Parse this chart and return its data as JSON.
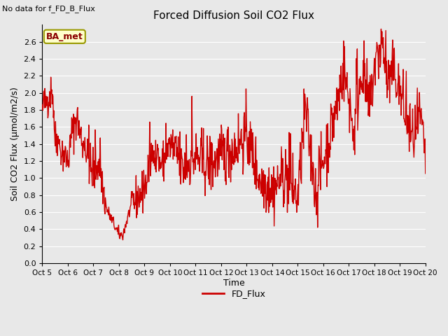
{
  "title": "Forced Diffusion Soil CO2 Flux",
  "no_data_text": "No data for f_FD_B_Flux",
  "xlabel": "Time",
  "ylabel": "Soil CO2 Flux (μmol/m2/s)",
  "ylim": [
    0.0,
    2.8
  ],
  "yticks": [
    0.0,
    0.2,
    0.4,
    0.6,
    0.8,
    1.0,
    1.2,
    1.4,
    1.6,
    1.8,
    2.0,
    2.2,
    2.4,
    2.6
  ],
  "line_color": "#cc0000",
  "line_width": 1.0,
  "legend_label": "FD_Flux",
  "legend_line_color": "#cc0000",
  "bg_color": "#e8e8e8",
  "plot_bg_color": "#e8e8e8",
  "grid_color": "#ffffff",
  "ba_met_text": "BA_met",
  "ba_met_bg": "#ffffcc",
  "ba_met_border": "#999900",
  "ba_met_text_color": "#8b0000",
  "x_tick_labels": [
    "Oct 5",
    "Oct 6",
    "Oct 7",
    "Oct 8",
    "Oct 9",
    "Oct 10",
    "Oct 11",
    "Oct 12",
    "Oct 13",
    "Oct 14",
    "Oct 15",
    "Oct 16",
    "Oct 17",
    "Oct 18",
    "Oct 19",
    "Oct 20"
  ],
  "figwidth": 6.4,
  "figheight": 4.8,
  "dpi": 100
}
